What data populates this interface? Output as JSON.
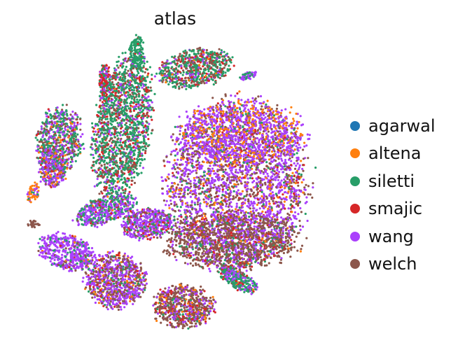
{
  "chart_data": {
    "type": "scatter",
    "title": "atlas",
    "xlabel": "",
    "ylabel": "",
    "grid": false,
    "axes_visible": false,
    "legend": {
      "placement": "right"
    },
    "series": [
      {
        "name": "agarwal",
        "color": "#1f77b4"
      },
      {
        "name": "altena",
        "color": "#ff7f0e"
      },
      {
        "name": "siletti",
        "color": "#279e68"
      },
      {
        "name": "smajic",
        "color": "#d62728"
      },
      {
        "name": "wang",
        "color": "#aa40fc"
      },
      {
        "name": "welch",
        "color": "#8c564b"
      }
    ]
  }
}
